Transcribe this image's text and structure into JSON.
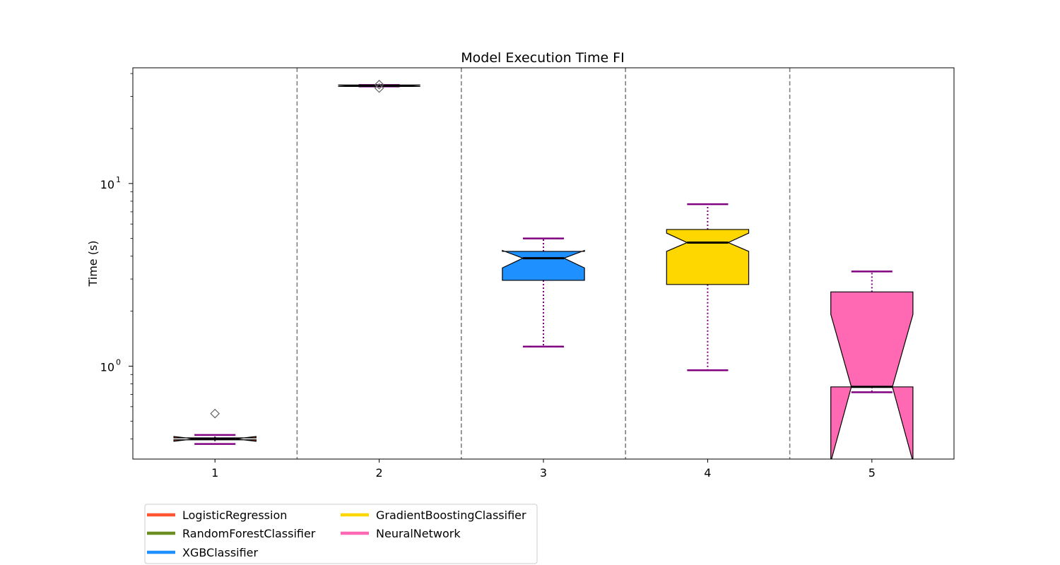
{
  "chart_data": {
    "type": "box",
    "title": "Model Execution Time FI",
    "xlabel": "",
    "ylabel": "Time (s)",
    "yscale": "log",
    "ylim": [
      0.31,
      43
    ],
    "x_ticks": [
      "1",
      "2",
      "3",
      "4",
      "5"
    ],
    "y_ticks": [
      {
        "value": 1,
        "base": "10",
        "exp": "0"
      },
      {
        "value": 10,
        "base": "10",
        "exp": "1"
      }
    ],
    "separators_between_boxes": true,
    "legend_position": "below-left",
    "boxes": [
      {
        "name": "LogisticRegression",
        "position": 1,
        "color": "#FF5533",
        "whislo": 0.375,
        "q1": 0.395,
        "med": 0.4,
        "q3": 0.405,
        "whishi": 0.42,
        "notch_lo": 0.388,
        "notch_hi": 0.412,
        "fliers": [
          0.55
        ]
      },
      {
        "name": "RandomForestClassifier",
        "position": 2,
        "color": "#6B8E23",
        "whislo": 34.0,
        "q1": 34.0,
        "med": 34.3,
        "q3": 34.6,
        "whishi": 34.6,
        "notch_lo": 34.0,
        "notch_hi": 34.6,
        "fliers": [
          33.3,
          34.8
        ]
      },
      {
        "name": "XGBClassifier",
        "position": 3,
        "color": "#1E90FF",
        "whislo": 1.28,
        "q1": 2.95,
        "med": 3.9,
        "q3": 4.25,
        "whishi": 5.0,
        "notch_lo": 3.45,
        "notch_hi": 4.3,
        "fliers": []
      },
      {
        "name": "GradientBoostingClassifier",
        "position": 4,
        "color": "#FFD700",
        "whislo": 0.95,
        "q1": 2.8,
        "med": 4.75,
        "q3": 5.6,
        "whishi": 7.7,
        "notch_lo": 4.25,
        "notch_hi": 5.35,
        "fliers": []
      },
      {
        "name": "NeuralNetwork",
        "position": 5,
        "color": "#FF69B4",
        "whislo": 0.72,
        "q1": 0.77,
        "med": 0.77,
        "q3": 2.55,
        "whishi": 3.3,
        "notch_lo": 0.3,
        "notch_hi": 1.92,
        "fliers": []
      }
    ],
    "colors": {
      "whisker": "#800080",
      "separator": "#808080",
      "median": "#000000"
    }
  }
}
